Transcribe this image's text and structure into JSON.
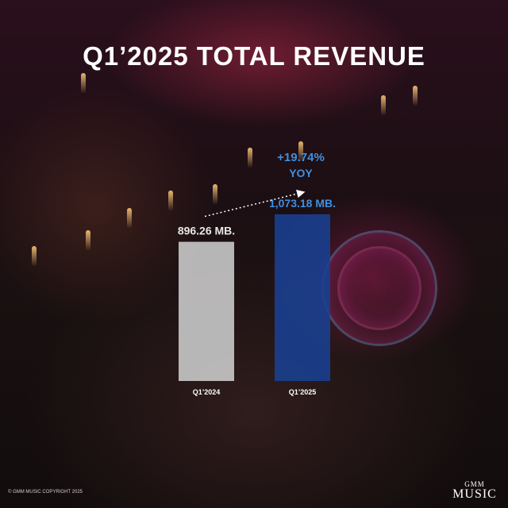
{
  "chart_data": {
    "type": "bar",
    "title": "Q1’2025 TOTAL REVENUE",
    "categories": [
      "Q1’2024",
      "Q1’2025"
    ],
    "values": [
      896.26,
      1073.18
    ],
    "value_labels": [
      "896.26 MB.",
      "1,073.18 MB."
    ],
    "bar_colors": [
      "#c9c9c9",
      "#1a3f8f"
    ],
    "label_colors": [
      "#e8e8e8",
      "#3f8fe0"
    ],
    "annotation": {
      "change": "+19.74%",
      "period": "YOY",
      "color": "#3f8fe0"
    },
    "ylim": [
      0,
      1073.18
    ],
    "grid": false
  },
  "footer": {
    "copyright": "© GMM MUSIC COPYRIGHT 2025",
    "logo_top": "GMM",
    "logo_bottom": "MUSIC"
  }
}
